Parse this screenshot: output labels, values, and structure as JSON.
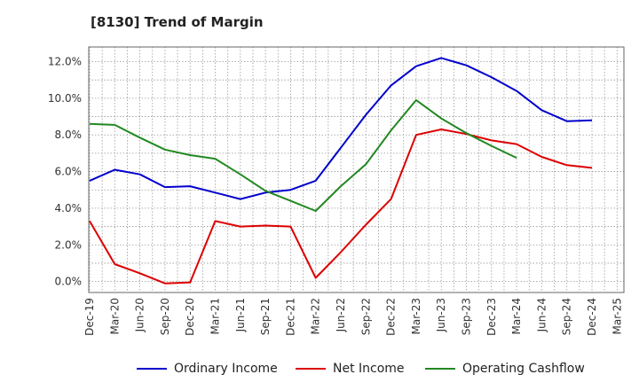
{
  "chart_data": {
    "type": "line",
    "title": "[8130]  Trend of Margin",
    "xlabel": "",
    "ylabel": "",
    "categories": [
      "Dec-19",
      "Mar-20",
      "Jun-20",
      "Sep-20",
      "Dec-20",
      "Mar-21",
      "Jun-21",
      "Sep-21",
      "Dec-21",
      "Mar-22",
      "Jun-22",
      "Sep-22",
      "Dec-22",
      "Mar-23",
      "Jun-23",
      "Sep-23",
      "Dec-23",
      "Mar-24",
      "Jun-24",
      "Sep-24",
      "Dec-24",
      "Mar-25"
    ],
    "ylim": [
      -0.6,
      12.8
    ],
    "yticks": [
      0.0,
      2.0,
      4.0,
      6.0,
      8.0,
      10.0,
      12.0
    ],
    "ytick_labels": [
      "0.0%",
      "2.0%",
      "4.0%",
      "6.0%",
      "8.0%",
      "10.0%",
      "12.0%"
    ],
    "grid": true,
    "legend_position": "bottom",
    "series": [
      {
        "name": "Ordinary Income",
        "color": "#0000cc",
        "values": [
          5.5,
          6.1,
          5.85,
          5.15,
          5.2,
          4.85,
          4.5,
          4.85,
          5.0,
          5.5,
          7.3,
          9.1,
          10.7,
          11.75,
          12.2,
          11.8,
          11.15,
          10.4,
          9.35,
          8.75,
          8.8,
          null
        ]
      },
      {
        "name": "Net Income",
        "color": "#dd0000",
        "values": [
          3.3,
          0.95,
          0.45,
          -0.1,
          -0.05,
          3.3,
          3.0,
          3.05,
          3.0,
          0.2,
          1.6,
          3.1,
          4.5,
          8.0,
          8.3,
          8.05,
          7.7,
          7.5,
          6.8,
          6.35,
          6.2,
          null
        ]
      },
      {
        "name": "Operating Cashflow",
        "color": "#228822",
        "values": [
          8.6,
          8.55,
          7.85,
          7.2,
          6.9,
          6.7,
          5.85,
          4.95,
          4.4,
          3.85,
          5.2,
          6.4,
          8.25,
          9.9,
          8.9,
          8.1,
          7.4,
          6.75,
          null,
          null,
          null,
          null
        ]
      }
    ]
  }
}
